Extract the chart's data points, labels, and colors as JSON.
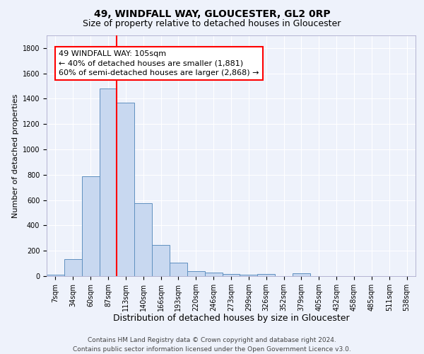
{
  "title1": "49, WINDFALL WAY, GLOUCESTER, GL2 0RP",
  "title2": "Size of property relative to detached houses in Gloucester",
  "xlabel": "Distribution of detached houses by size in Gloucester",
  "ylabel": "Number of detached properties",
  "bar_labels": [
    "7sqm",
    "34sqm",
    "60sqm",
    "87sqm",
    "113sqm",
    "140sqm",
    "166sqm",
    "193sqm",
    "220sqm",
    "246sqm",
    "273sqm",
    "299sqm",
    "326sqm",
    "352sqm",
    "379sqm",
    "405sqm",
    "432sqm",
    "458sqm",
    "485sqm",
    "511sqm",
    "538sqm"
  ],
  "bar_values": [
    10,
    135,
    790,
    1480,
    1370,
    575,
    245,
    108,
    38,
    27,
    18,
    13,
    15,
    0,
    20,
    0,
    0,
    0,
    0,
    0,
    0
  ],
  "bar_color": "#c8d8f0",
  "bar_edge_color": "#6090c0",
  "property_line_col": 4,
  "property_line_color": "red",
  "annotation_text": "49 WINDFALL WAY: 105sqm\n← 40% of detached houses are smaller (1,881)\n60% of semi-detached houses are larger (2,868) →",
  "annotation_box_color": "white",
  "annotation_box_edge_color": "red",
  "ylim": [
    0,
    1900
  ],
  "yticks": [
    0,
    200,
    400,
    600,
    800,
    1000,
    1200,
    1400,
    1600,
    1800
  ],
  "background_color": "#eef2fb",
  "grid_color": "white",
  "footer_line1": "Contains HM Land Registry data © Crown copyright and database right 2024.",
  "footer_line2": "Contains public sector information licensed under the Open Government Licence v3.0.",
  "title1_fontsize": 10,
  "title2_fontsize": 9,
  "xlabel_fontsize": 9,
  "ylabel_fontsize": 8,
  "tick_fontsize": 7,
  "annotation_fontsize": 8,
  "footer_fontsize": 6.5
}
